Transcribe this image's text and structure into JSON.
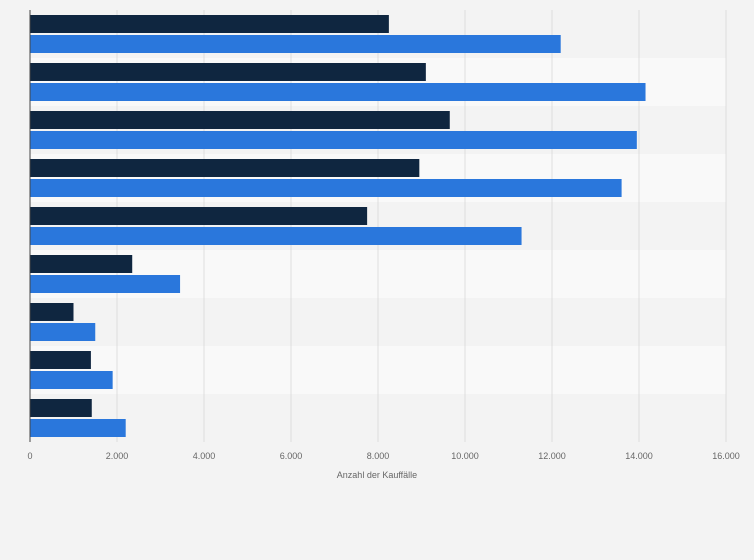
{
  "chart_data": {
    "type": "bar",
    "orientation": "horizontal",
    "categories": [
      "",
      "",
      "",
      "",
      "",
      "",
      "",
      "",
      ""
    ],
    "series": [
      {
        "color": "#0f2640",
        "values": [
          8250,
          9100,
          9650,
          8950,
          7750,
          2350,
          1000,
          1400,
          1420
        ]
      },
      {
        "color": "#2a77dc",
        "values": [
          12200,
          14150,
          13950,
          13600,
          11300,
          3450,
          1500,
          1900,
          2200
        ]
      }
    ],
    "xlabel": "Anzahl der Kauffälle",
    "ylabel": "",
    "xlim": [
      0,
      16000
    ],
    "xticks": [
      0,
      2000,
      4000,
      6000,
      8000,
      10000,
      12000,
      14000,
      16000
    ],
    "xtick_labels": [
      "0",
      "2.000",
      "4.000",
      "6.000",
      "8.000",
      "10.000",
      "12.000",
      "14.000",
      "16.000"
    ],
    "grid": true,
    "band_colors": [
      "#f3f3f3",
      "#f9f9f9"
    ],
    "legend": "none"
  }
}
